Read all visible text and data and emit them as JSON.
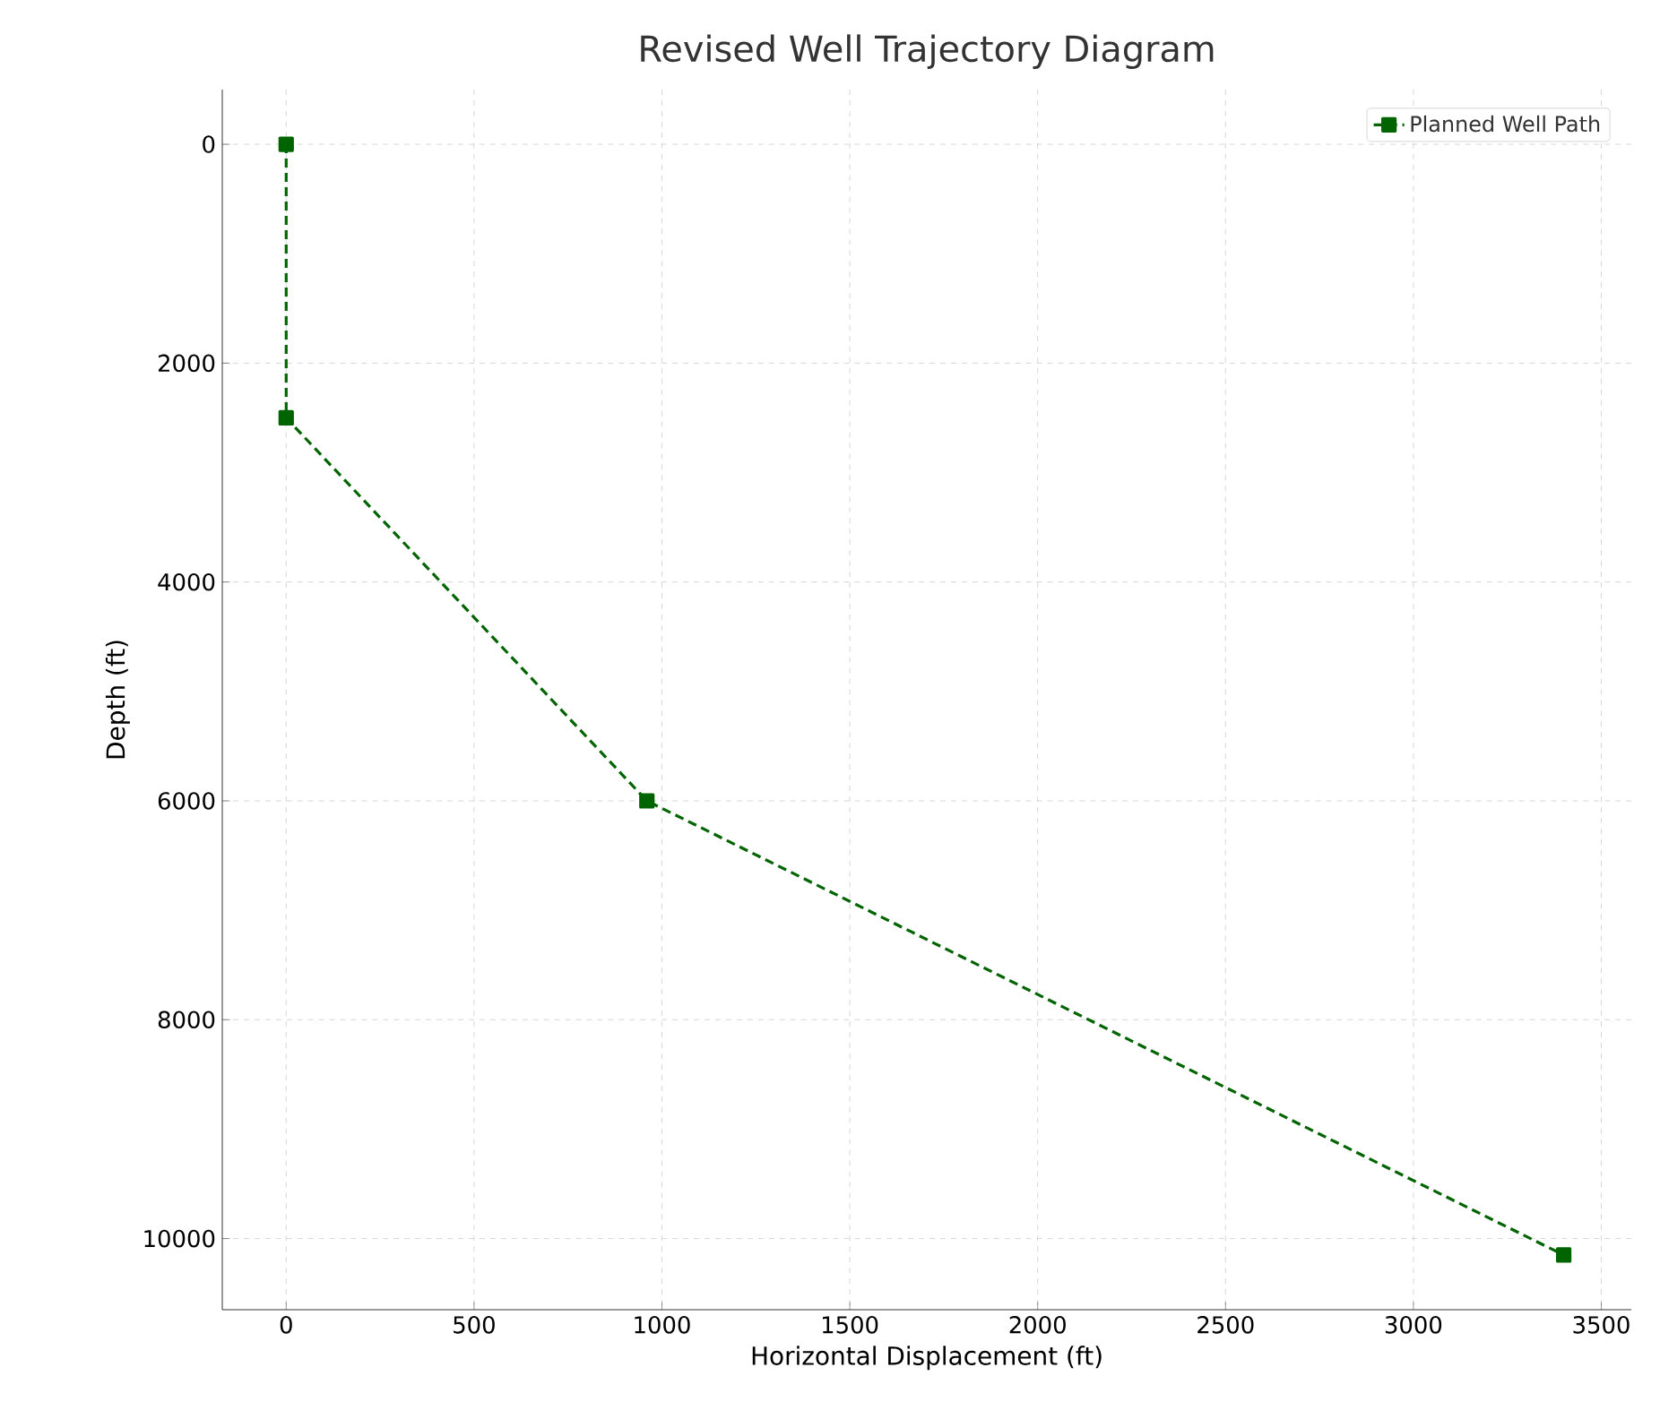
{
  "chart_data": {
    "type": "line",
    "title": "Revised Well Trajectory Diagram",
    "xlabel": "Horizontal Displacement (ft)",
    "ylabel": "Depth (ft)",
    "x": [
      0,
      0,
      960,
      3400
    ],
    "series": [
      {
        "name": "Planned Well Path",
        "color": "#006400",
        "values": [
          0,
          2500,
          6000,
          10150
        ]
      }
    ],
    "xlim": [
      -170,
      3580
    ],
    "ylim": [
      10650,
      -500
    ],
    "xticks": [
      0,
      500,
      1000,
      1500,
      2000,
      2500,
      3000,
      3500
    ],
    "yticks": [
      0,
      2000,
      4000,
      6000,
      8000,
      10000
    ],
    "grid": true,
    "legend": "top right",
    "marker": "square",
    "line_style": "dashed"
  }
}
